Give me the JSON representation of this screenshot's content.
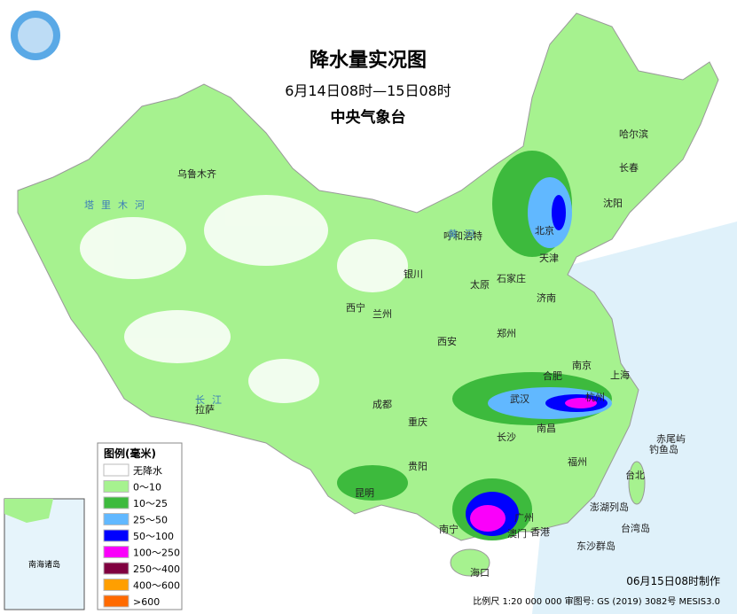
{
  "header": {
    "title": "降水量实况图",
    "subtitle": "6月14日08时—15日08时",
    "agency": "中央气象台"
  },
  "legend": {
    "title": "图例(毫米)",
    "items": [
      {
        "label": "无降水",
        "color": "#ffffff"
      },
      {
        "label": "0～10",
        "color": "#a6f28f"
      },
      {
        "label": "10～25",
        "color": "#3dba3d"
      },
      {
        "label": "25～50",
        "color": "#61b8ff"
      },
      {
        "label": "50～100",
        "color": "#0000fe"
      },
      {
        "label": "100～250",
        "color": "#fa00fa"
      },
      {
        "label": "250～400",
        "color": "#800040"
      },
      {
        "label": "400～600",
        "color": "#ff9f00"
      },
      {
        "label": ">600",
        "color": "#ff6a00"
      }
    ]
  },
  "cities": [
    "乌鲁木齐",
    "哈尔滨",
    "长春",
    "沈阳",
    "北京",
    "天津",
    "呼和浩特",
    "石家庄",
    "太原",
    "济南",
    "银川",
    "西宁",
    "兰州",
    "郑州",
    "西安",
    "南京",
    "合肥",
    "上海",
    "杭州",
    "武汉",
    "南昌",
    "长沙",
    "成都",
    "重庆",
    "贵阳",
    "昆明",
    "拉萨",
    "南宁",
    "广州",
    "澳门",
    "香港",
    "海口",
    "福州",
    "台北",
    "钓鱼岛",
    "赤尾屿",
    "澎湖列岛",
    "台湾岛",
    "东沙群岛"
  ],
  "rivers": [
    "塔里木河",
    "黄河",
    "长江"
  ],
  "inset": {
    "label": "南海诸岛"
  },
  "footer": {
    "made": "06月15日08时制作",
    "scale": "比例尺 1:20 000 000   审图号: GS (2019) 3082号 MESIS3.0"
  }
}
